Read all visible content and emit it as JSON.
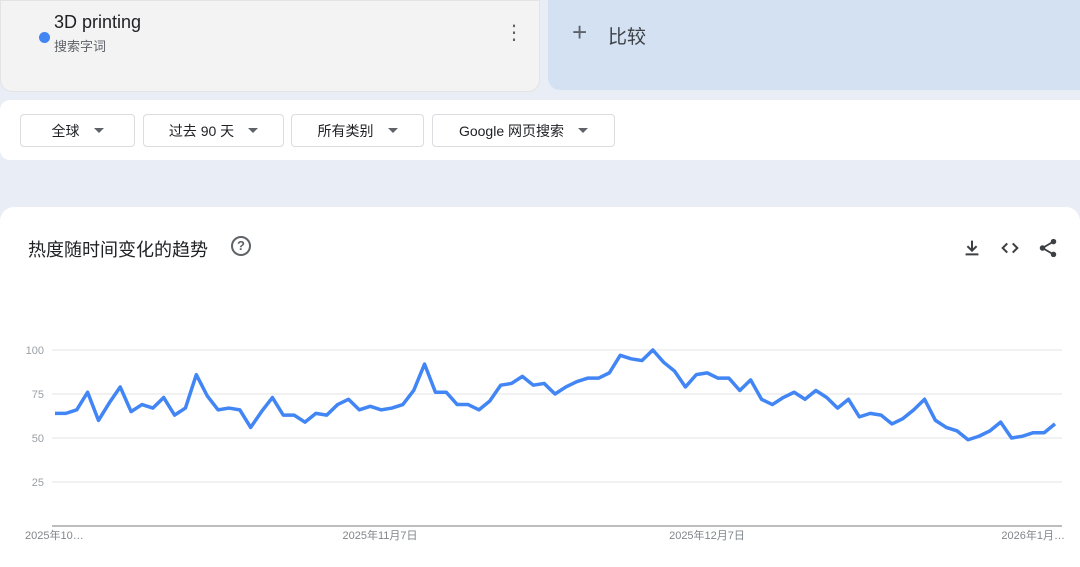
{
  "search_term": {
    "name": "3D printing",
    "type": "搜索字词",
    "color": "#4285f4"
  },
  "compare": {
    "label": "比较"
  },
  "filters": [
    {
      "label": "全球"
    },
    {
      "label": "过去 90 天"
    },
    {
      "label": "所有类别"
    },
    {
      "label": "Google 网页搜索"
    }
  ],
  "chart_section": {
    "title": "热度随时间变化的趋势",
    "help": "?",
    "icons": [
      "download-icon",
      "embed-code-icon",
      "share-icon"
    ]
  },
  "chart_data": {
    "type": "line",
    "ylim": [
      0,
      100
    ],
    "yticks": [
      25,
      50,
      75,
      100
    ],
    "xtick_labels": [
      "2025年10…",
      "2025年11月7日",
      "2025年12月7日",
      "2026年1月…"
    ],
    "grid": true,
    "series": [
      {
        "name": "3D printing",
        "color": "#4285f4",
        "values": [
          64,
          64,
          66,
          76,
          60,
          70,
          79,
          65,
          69,
          67,
          73,
          63,
          67,
          86,
          74,
          66,
          67,
          66,
          56,
          65,
          73,
          63,
          63,
          59,
          64,
          63,
          69,
          72,
          66,
          68,
          66,
          67,
          69,
          77,
          92,
          76,
          76,
          69,
          69,
          66,
          71,
          80,
          81,
          85,
          80,
          81,
          75,
          79,
          82,
          84,
          84,
          87,
          97,
          95,
          94,
          100,
          93,
          88,
          79,
          86,
          87,
          84,
          84,
          77,
          83,
          72,
          69,
          73,
          76,
          72,
          77,
          73,
          67,
          72,
          62,
          64,
          63,
          58,
          61,
          66,
          72,
          60,
          56,
          54,
          49,
          51,
          54,
          59,
          50,
          51,
          53,
          53,
          58
        ]
      }
    ]
  }
}
